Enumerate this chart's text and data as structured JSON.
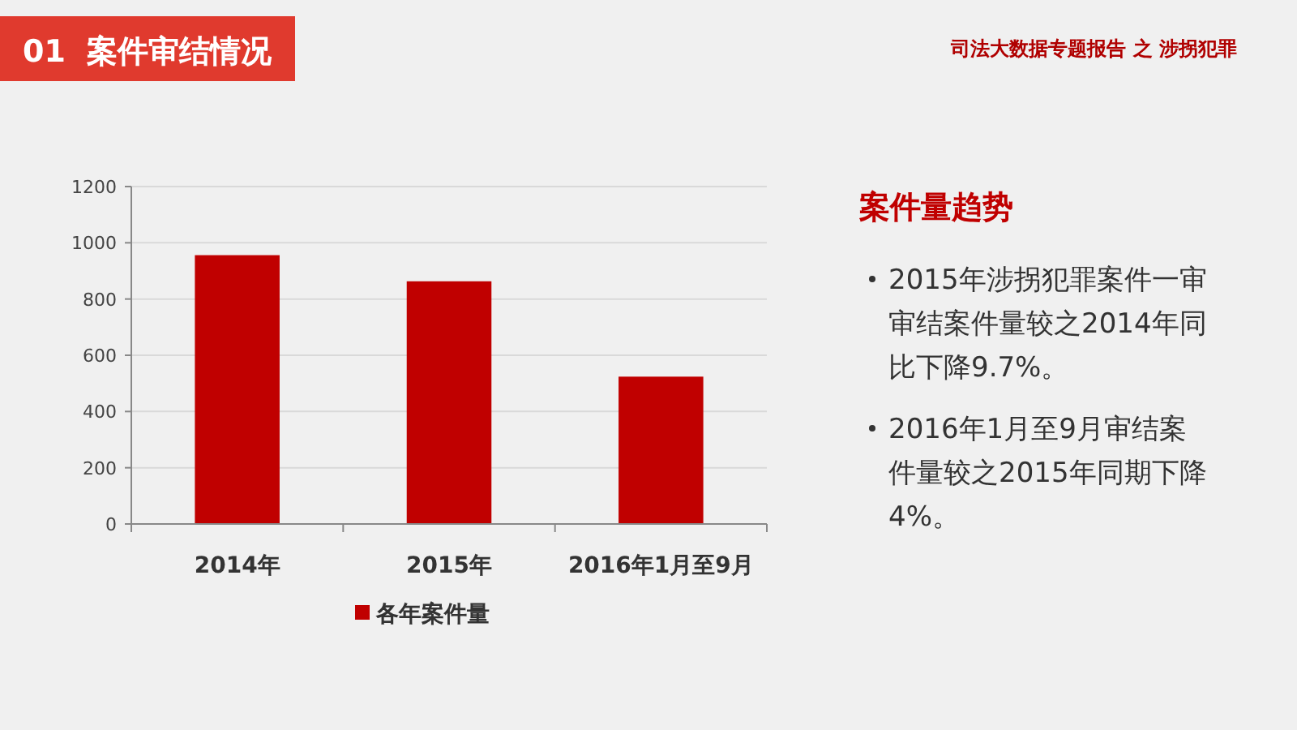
{
  "chart_data": {
    "type": "bar",
    "title": "01  案件审结情况",
    "subtitle": "司法大数据专题报告 之 涉拐犯罪",
    "categories": [
      "2014年",
      "2015年",
      "2016年1月至9月"
    ],
    "series": [
      {
        "name": "各年案件量",
        "color": "#c00000",
        "values": [
          956,
          863,
          524
        ]
      }
    ],
    "ylim": [
      0,
      1200
    ],
    "yticks": [
      0,
      200,
      400,
      600,
      800,
      1000,
      1200
    ],
    "grid": "y",
    "legend": "bottom",
    "annotations": [
      "案件量趋势",
      "2015年涉拐犯罪案件一审审结案件量较之2014年同比下降9.7%。",
      "2016年1月至9月审结案件量较之2015年同期下降4%。"
    ]
  }
}
